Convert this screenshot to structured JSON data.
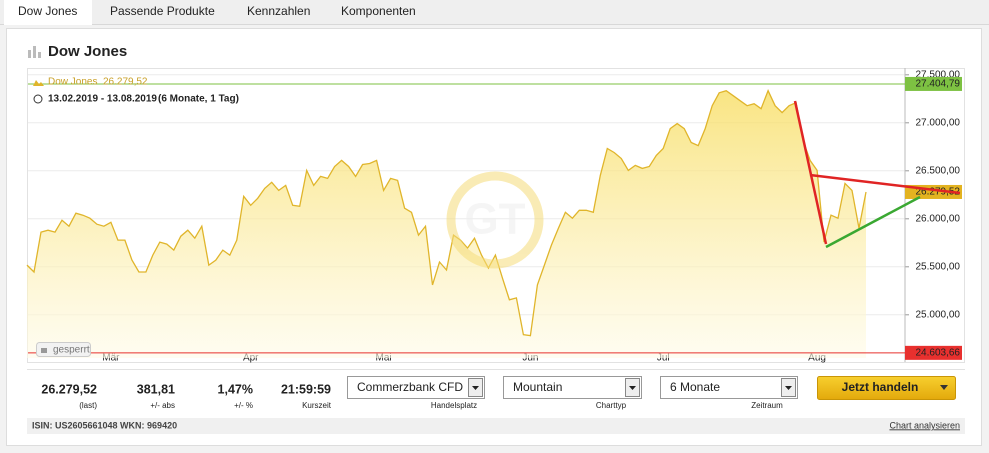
{
  "tabs": [
    "Dow Jones",
    "Passende Produkte",
    "Kennzahlen",
    "Komponenten"
  ],
  "header": {
    "title": "Dow Jones"
  },
  "chart_data": {
    "type": "area",
    "legend": {
      "name": "Dow Jones",
      "price": "26.279,52",
      "range": "13.02.2019 - 13.08.2019",
      "period": "(6 Monate, 1 Tag)"
    },
    "badge": "gesperrt",
    "color": "#e0b52b",
    "categories": [
      null,
      null,
      null,
      null,
      null,
      null,
      null,
      null,
      null,
      null,
      null,
      null,
      "Mär",
      null,
      null,
      null,
      null,
      null,
      null,
      null,
      null,
      null,
      null,
      null,
      null,
      null,
      null,
      null,
      null,
      null,
      null,
      null,
      "Apr",
      null,
      null,
      null,
      null,
      null,
      null,
      null,
      null,
      null,
      null,
      null,
      null,
      null,
      null,
      null,
      null,
      null,
      null,
      "Mai",
      null,
      null,
      null,
      null,
      null,
      null,
      null,
      null,
      null,
      null,
      null,
      null,
      null,
      null,
      null,
      null,
      null,
      null,
      null,
      null,
      "Jun",
      null,
      null,
      null,
      null,
      null,
      null,
      null,
      null,
      null,
      null,
      null,
      null,
      null,
      null,
      null,
      null,
      null,
      null,
      "Jul",
      null,
      null,
      null,
      null,
      null,
      null,
      null,
      null,
      null,
      null,
      null,
      null,
      null,
      null,
      null,
      null,
      null,
      null,
      null,
      null,
      null,
      "Aug",
      null,
      null,
      null,
      null,
      null,
      null,
      null
    ],
    "values": [
      25518,
      25446,
      25861,
      25881,
      25861,
      25985,
      25923,
      26058,
      26037,
      26006,
      25944,
      25923,
      25964,
      25778,
      25778,
      25571,
      25446,
      25446,
      25622,
      25757,
      25736,
      25674,
      25819,
      25881,
      25798,
      25923,
      25518,
      25570,
      25674,
      25622,
      25778,
      26234,
      26141,
      26214,
      26317,
      26380,
      26296,
      26348,
      26141,
      26130,
      26504,
      26348,
      26442,
      26421,
      26545,
      26608,
      26545,
      26442,
      26566,
      26576,
      26608,
      26296,
      26421,
      26400,
      26110,
      26068,
      25830,
      25923,
      25311,
      25550,
      25467,
      25830,
      25778,
      25695,
      25798,
      25622,
      25487,
      25622,
      25384,
      25156,
      25176,
      24793,
      24782,
      25311,
      25518,
      25726,
      25902,
      26068,
      26006,
      26089,
      26089,
      26068,
      26452,
      26732,
      26690,
      26628,
      26504,
      26556,
      26525,
      26545,
      26660,
      26732,
      26940,
      26992,
      26940,
      26795,
      26763,
      26940,
      27178,
      27313,
      27334,
      27282,
      27230,
      27178,
      27199,
      27147,
      27334,
      27178,
      27106,
      27178,
      27209,
      26815,
      26608,
      26504,
      25757,
      26037,
      26006,
      26369,
      26296,
      25902,
      26279.52
    ],
    "ylim": [
      24550,
      27550
    ],
    "yticks": [
      {
        "value": 25000,
        "label": "25.000,00"
      },
      {
        "value": 25500,
        "label": "25.500,00"
      },
      {
        "value": 26000,
        "label": "26.000,00"
      },
      {
        "value": 26500,
        "label": "26.500,00"
      },
      {
        "value": 27000,
        "label": "27.000,00"
      },
      {
        "value": 27500,
        "label": "27.500,00"
      }
    ],
    "grid": true,
    "reference_lines": [
      {
        "value": 27404.79,
        "label": "27.404,79",
        "color": "#7dc142"
      },
      {
        "value": 24603.66,
        "label": "24.603,66",
        "color": "#e8302e"
      }
    ],
    "current": {
      "value": 26279.52,
      "label": "26.279,52",
      "color": "#e3b320"
    }
  },
  "stats": [
    {
      "value": "26.279,52",
      "label": "(last)",
      "color": "#222222"
    },
    {
      "value": "381,81",
      "label": "+/- abs",
      "color": "#3f9a2a"
    },
    {
      "value": "1,47%",
      "label": "+/- %",
      "color": "#3f9a2a"
    },
    {
      "value": "21:59:59",
      "label": "Kurszeit",
      "color": "#222222"
    }
  ],
  "selects": [
    {
      "value": "Commerzbank CFD",
      "label": "Handelsplatz"
    },
    {
      "value": "Mountain",
      "label": "Charttyp"
    },
    {
      "value": "6 Monate",
      "label": "Zeitraum"
    }
  ],
  "button": "Jetzt handeln",
  "footer": {
    "ids": "ISIN: US2605661048 WKN: 969420",
    "link": "Chart analysieren"
  }
}
